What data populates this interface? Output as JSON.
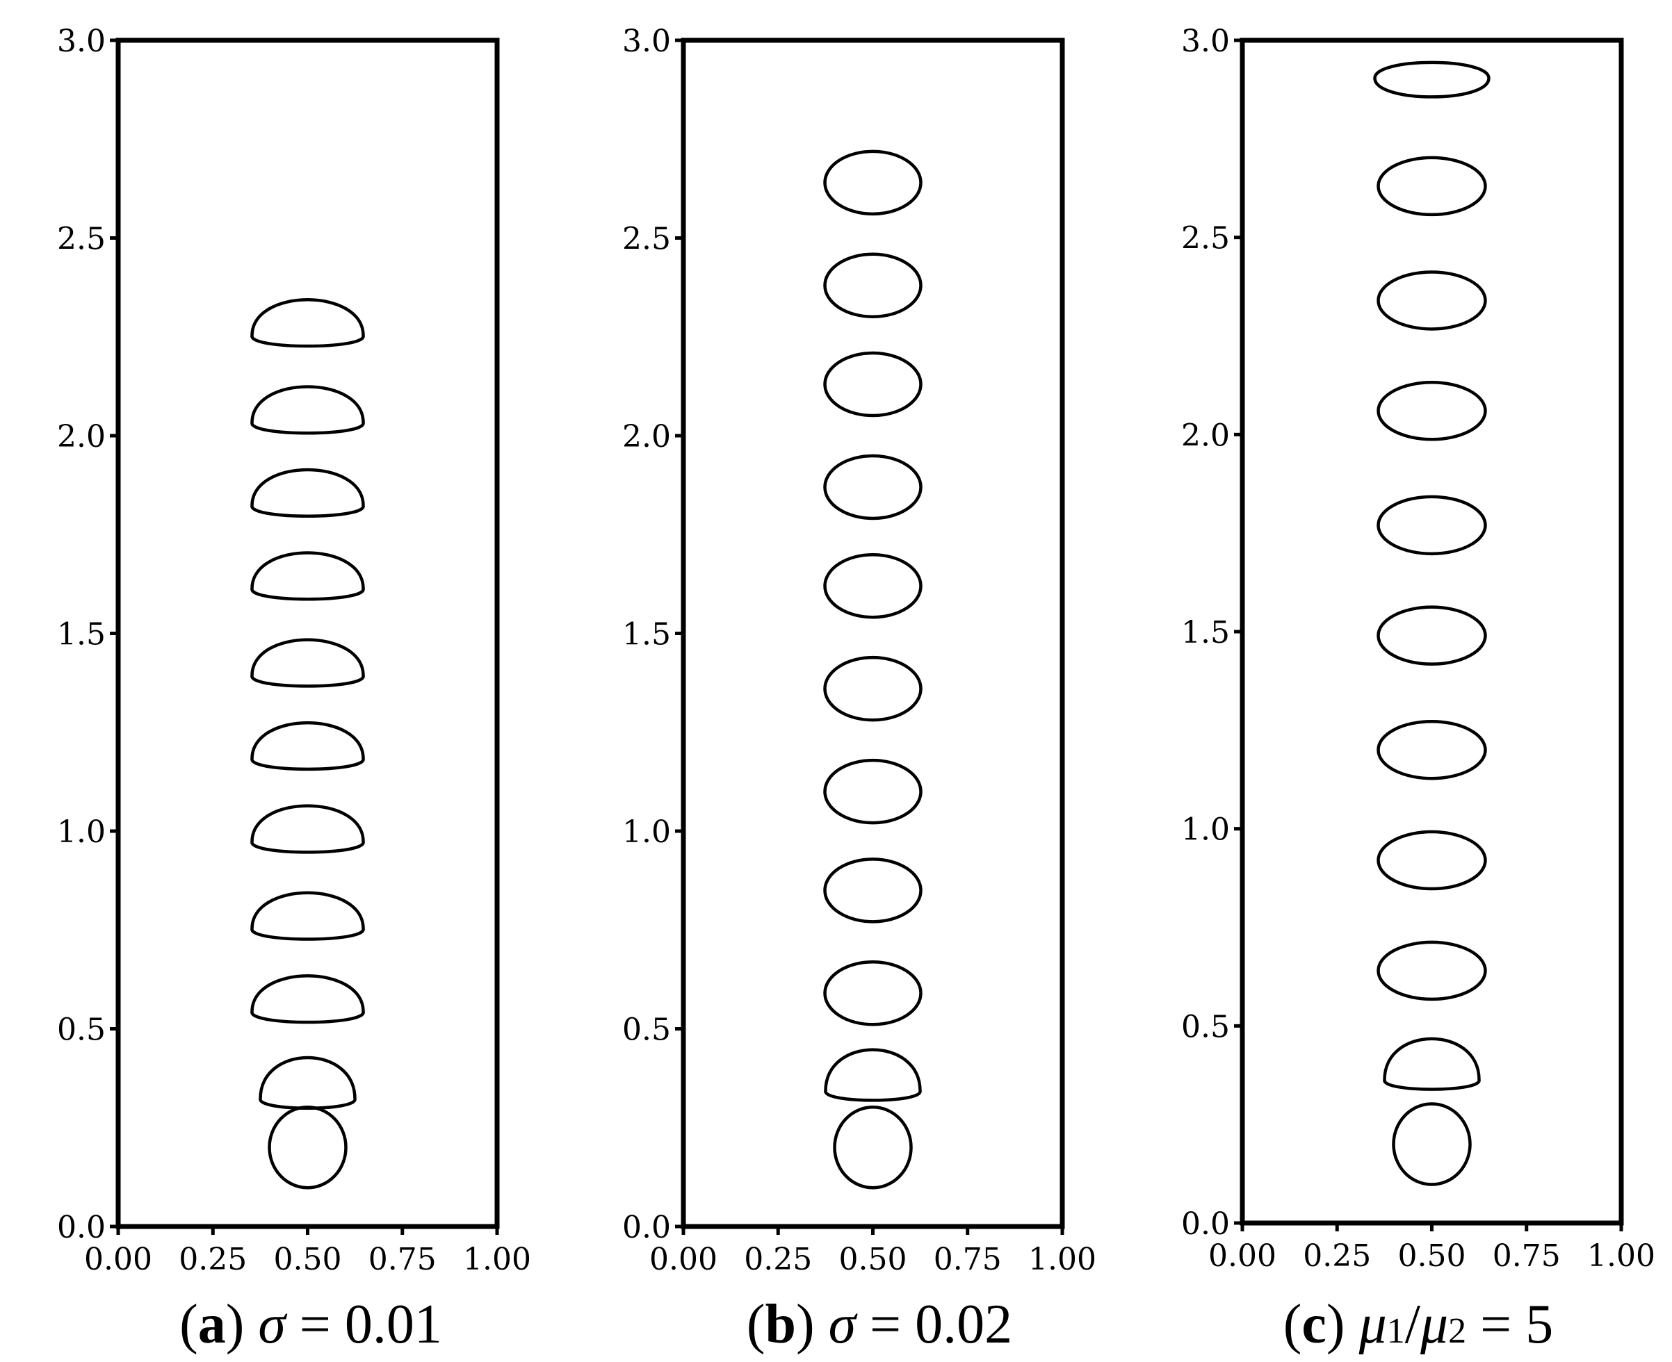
{
  "chart_data": [
    {
      "type": "scatter",
      "panel": "a",
      "caption": {
        "label": "a",
        "symbol": "σ",
        "equals": "= 0.01"
      },
      "x_ticks": [
        "0.00",
        "0.25",
        "0.50",
        "0.75",
        "1.00"
      ],
      "y_ticks": [
        "0.0",
        "0.5",
        "1.0",
        "1.5",
        "2.0",
        "2.5",
        "3.0"
      ],
      "xlim": [
        0,
        1
      ],
      "ylim": [
        0,
        3
      ],
      "bubble_centers_y": [
        0.2,
        0.33,
        0.55,
        0.76,
        0.98,
        1.19,
        1.4,
        1.62,
        1.83,
        2.04,
        2.26
      ],
      "bubble_shapes": [
        "circle",
        "cap",
        "cap",
        "cap",
        "cap",
        "cap",
        "cap",
        "cap",
        "cap",
        "cap",
        "cap"
      ],
      "bubble_x": 0.5
    },
    {
      "type": "scatter",
      "panel": "b",
      "caption": {
        "label": "b",
        "symbol": "σ",
        "equals": "= 0.02"
      },
      "x_ticks": [
        "0.00",
        "0.25",
        "0.50",
        "0.75",
        "1.00"
      ],
      "y_ticks": [
        "0.0",
        "0.5",
        "1.0",
        "1.5",
        "2.0",
        "2.5",
        "3.0"
      ],
      "xlim": [
        0,
        1
      ],
      "ylim": [
        0,
        3
      ],
      "bubble_centers_y": [
        0.2,
        0.35,
        0.59,
        0.85,
        1.1,
        1.36,
        1.62,
        1.87,
        2.13,
        2.38,
        2.64
      ],
      "bubble_shapes": [
        "circle",
        "cap",
        "ellipse",
        "ellipse",
        "ellipse",
        "ellipse",
        "ellipse",
        "ellipse",
        "ellipse",
        "ellipse",
        "ellipse"
      ],
      "bubble_x": 0.5
    },
    {
      "type": "scatter",
      "panel": "c",
      "caption": {
        "label": "c",
        "mu1": "μ",
        "sub1": "1",
        "slash": "/",
        "mu2": "μ",
        "sub2": "2",
        "equals": " = 5"
      },
      "x_ticks": [
        "0.00",
        "0.25",
        "0.50",
        "0.75",
        "1.00"
      ],
      "y_ticks": [
        "0.0",
        "0.5",
        "1.0",
        "1.5",
        "2.0",
        "2.5",
        "3.0"
      ],
      "xlim": [
        0,
        1
      ],
      "ylim": [
        0,
        3
      ],
      "bubble_centers_y": [
        0.2,
        0.37,
        0.64,
        0.92,
        1.2,
        1.49,
        1.77,
        2.06,
        2.34,
        2.63,
        2.89
      ],
      "bubble_shapes": [
        "circle",
        "cap",
        "flat",
        "flat",
        "flat",
        "flat",
        "flat",
        "flat",
        "flat",
        "flat",
        "topcap"
      ],
      "bubble_x": 0.5
    }
  ]
}
